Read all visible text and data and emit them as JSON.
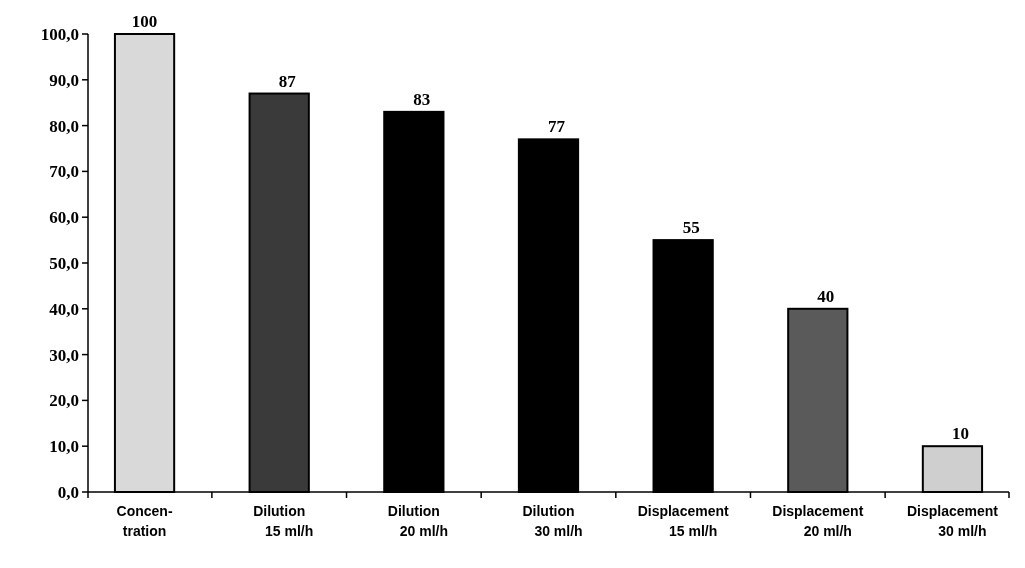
{
  "chart_data": {
    "type": "bar",
    "categories": [
      "Concen-\ntration",
      "Dilution\n15 ml/h",
      "Dilution\n20 ml/h",
      "Dilution\n30 ml/h",
      "Displacement\n15 ml/h",
      "Displacement\n20 ml/h",
      "Displacement\n30 ml/h"
    ],
    "values": [
      100,
      87,
      83,
      77,
      55,
      40,
      10
    ],
    "colors": [
      "#d9d9d9",
      "#3a3a3a",
      "#000000",
      "#000000",
      "#000000",
      "#5a5a5a",
      "#cfcfcf"
    ],
    "ylim": [
      0,
      100
    ],
    "yticks": [
      {
        "value": 0,
        "label": "0,0"
      },
      {
        "value": 10,
        "label": "10,0"
      },
      {
        "value": 20,
        "label": "20,0"
      },
      {
        "value": 30,
        "label": "30,0"
      },
      {
        "value": 40,
        "label": "40,0"
      },
      {
        "value": 50,
        "label": "50,0"
      },
      {
        "value": 60,
        "label": "60,0"
      },
      {
        "value": 70,
        "label": "70,0"
      },
      {
        "value": 80,
        "label": "80,0"
      },
      {
        "value": 90,
        "label": "90,0"
      },
      {
        "value": 100,
        "label": "100,0"
      }
    ],
    "data_labels": true,
    "grid": false
  }
}
